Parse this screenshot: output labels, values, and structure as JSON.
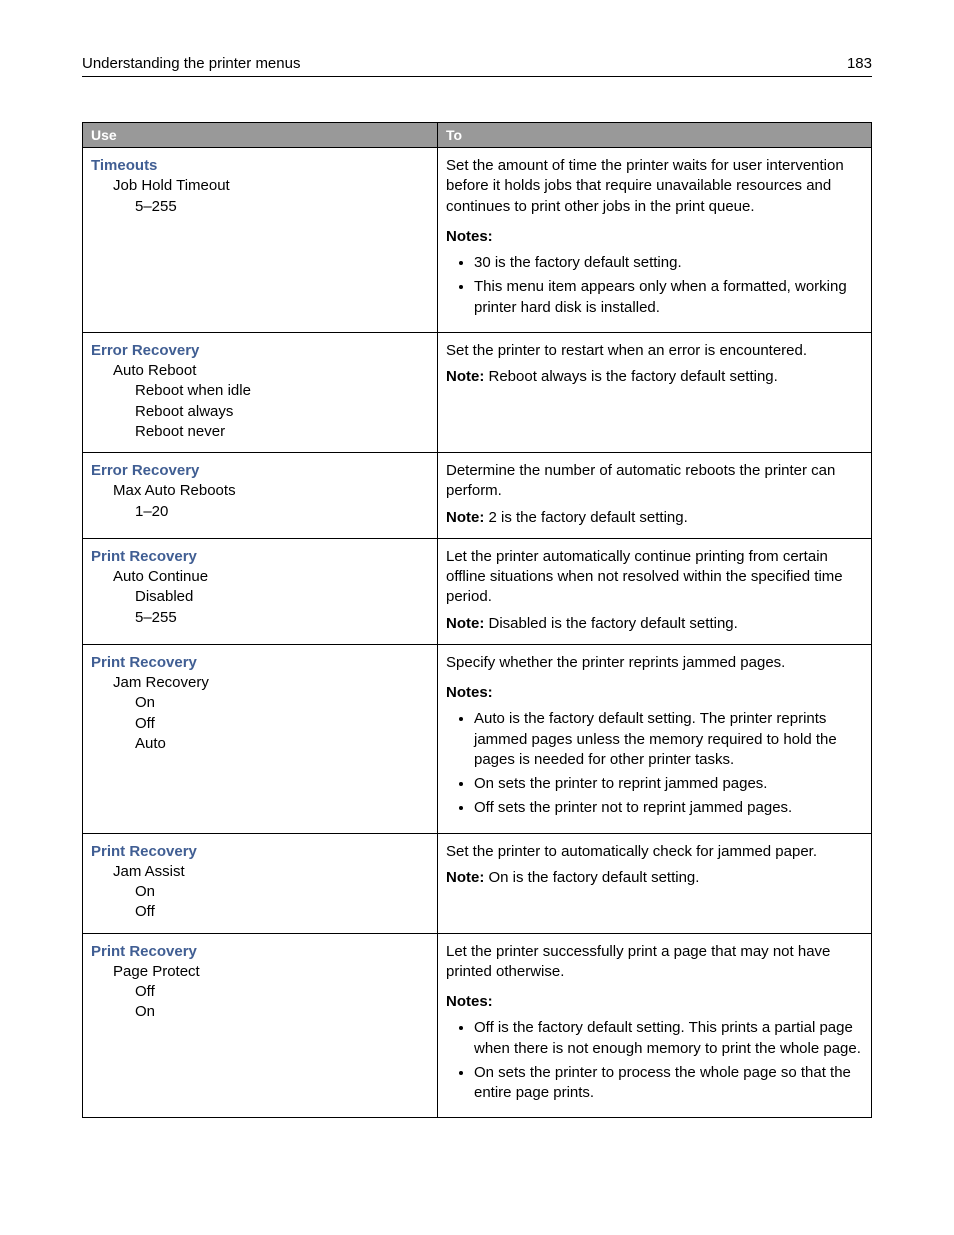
{
  "header": {
    "title": "Understanding the printer menus",
    "page": "183"
  },
  "table": {
    "columns": [
      "Use",
      "To"
    ],
    "rows": [
      {
        "use": {
          "title": "Timeouts",
          "lines": [
            {
              "indent": 1,
              "text": "Job Hold Timeout"
            },
            {
              "indent": 2,
              "text": "5–255"
            }
          ]
        },
        "to": {
          "desc": "Set the amount of time the printer waits for user intervention before it holds jobs that require unavailable resources and continues to print other jobs in the print queue.",
          "notes_heading": "Notes:",
          "notes": [
            "30 is the factory default setting.",
            "This menu item appears only when a formatted, working printer hard disk is installed."
          ]
        }
      },
      {
        "use": {
          "title": "Error Recovery",
          "lines": [
            {
              "indent": 1,
              "text": "Auto Reboot"
            },
            {
              "indent": 2,
              "text": "Reboot when idle"
            },
            {
              "indent": 2,
              "text": "Reboot always"
            },
            {
              "indent": 2,
              "text": "Reboot never"
            }
          ]
        },
        "to": {
          "desc": "Set the printer to restart when an error is encountered.",
          "note_label": "Note:",
          "note_text": " Reboot always is the factory default setting."
        }
      },
      {
        "use": {
          "title": "Error Recovery",
          "lines": [
            {
              "indent": 1,
              "text": "Max Auto Reboots"
            },
            {
              "indent": 2,
              "text": "1–20"
            }
          ]
        },
        "to": {
          "desc": "Determine the number of automatic reboots the printer can perform.",
          "note_label": "Note:",
          "note_text": " 2 is the factory default setting."
        }
      },
      {
        "use": {
          "title": "Print Recovery",
          "lines": [
            {
              "indent": 1,
              "text": "Auto Continue"
            },
            {
              "indent": 2,
              "text": "Disabled"
            },
            {
              "indent": 2,
              "text": "5–255"
            }
          ]
        },
        "to": {
          "desc": "Let the printer automatically continue printing from certain offline situations when not resolved within the specified time period.",
          "note_label": "Note:",
          "note_text": " Disabled is the factory default setting."
        }
      },
      {
        "use": {
          "title": "Print Recovery",
          "lines": [
            {
              "indent": 1,
              "text": "Jam Recovery"
            },
            {
              "indent": 2,
              "text": "On"
            },
            {
              "indent": 2,
              "text": "Off"
            },
            {
              "indent": 2,
              "text": "Auto"
            }
          ]
        },
        "to": {
          "desc": "Specify whether the printer reprints jammed pages.",
          "notes_heading": "Notes:",
          "notes": [
            "Auto is the factory default setting. The printer reprints jammed pages unless the memory required to hold the pages is needed for other printer tasks.",
            "On sets the printer to reprint jammed pages.",
            "Off sets the printer not to reprint jammed pages."
          ]
        }
      },
      {
        "use": {
          "title": "Print Recovery",
          "lines": [
            {
              "indent": 1,
              "text": "Jam Assist"
            },
            {
              "indent": 2,
              "text": "On"
            },
            {
              "indent": 2,
              "text": "Off"
            }
          ]
        },
        "to": {
          "desc": "Set the printer to automatically check for jammed paper.",
          "note_label": "Note:",
          "note_text": " On is the factory default setting."
        }
      },
      {
        "use": {
          "title": "Print Recovery",
          "lines": [
            {
              "indent": 1,
              "text": "Page Protect"
            },
            {
              "indent": 2,
              "text": "Off"
            },
            {
              "indent": 2,
              "text": "On"
            }
          ]
        },
        "to": {
          "desc": "Let the printer successfully print a page that may not have printed otherwise.",
          "notes_heading": "Notes:",
          "notes": [
            "Off is the factory default setting. This prints a partial page when there is not enough memory to print the whole page.",
            "On sets the printer to process the whole page so that the entire page prints."
          ]
        }
      }
    ]
  }
}
